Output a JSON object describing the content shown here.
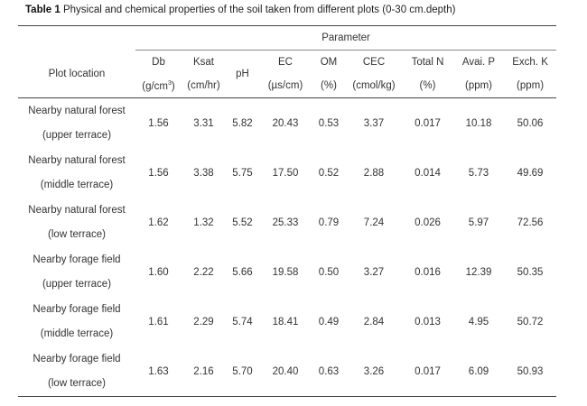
{
  "caption": {
    "label": "Table 1",
    "text": "Physical and chemical properties of the soil taken from different plots (0-30 cm.depth)"
  },
  "table": {
    "group_header": "Parameter",
    "location_header": "Plot location",
    "columns": [
      {
        "name": "Db",
        "unit_pre": "(g/cm",
        "unit_sup": "3",
        "unit_post": ")"
      },
      {
        "name": "Ksat",
        "unit_pre": "(cm/hr)",
        "unit_sup": "",
        "unit_post": ""
      },
      {
        "name": "pH",
        "unit_pre": "",
        "unit_sup": "",
        "unit_post": ""
      },
      {
        "name": "EC",
        "unit_pre": "(µs/cm)",
        "unit_sup": "",
        "unit_post": ""
      },
      {
        "name": "OM",
        "unit_pre": "(%)",
        "unit_sup": "",
        "unit_post": ""
      },
      {
        "name": "CEC",
        "unit_pre": "(cmol/kg)",
        "unit_sup": "",
        "unit_post": ""
      },
      {
        "name": "Total N",
        "unit_pre": "(%)",
        "unit_sup": "",
        "unit_post": ""
      },
      {
        "name": "Avai. P",
        "unit_pre": "(ppm)",
        "unit_sup": "",
        "unit_post": ""
      },
      {
        "name": "Exch. K",
        "unit_pre": "(ppm)",
        "unit_sup": "",
        "unit_post": ""
      }
    ],
    "rows": [
      {
        "loc1": "Nearby natural forest",
        "loc2": "(upper terrace)",
        "values": [
          "1.56",
          "3.31",
          "5.82",
          "20.43",
          "0.53",
          "3.37",
          "0.017",
          "10.18",
          "50.06"
        ]
      },
      {
        "loc1": "Nearby natural forest",
        "loc2": "(middle terrace)",
        "values": [
          "1.56",
          "3.38",
          "5.75",
          "17.50",
          "0.52",
          "2.88",
          "0.014",
          "5.73",
          "49.69"
        ]
      },
      {
        "loc1": "Nearby natural forest",
        "loc2": "(low terrace)",
        "values": [
          "1.62",
          "1.32",
          "5.52",
          "25.33",
          "0.79",
          "7.24",
          "0.026",
          "5.97",
          "72.56"
        ]
      },
      {
        "loc1": "Nearby forage field",
        "loc2": "(upper terrace)",
        "values": [
          "1.60",
          "2.22",
          "5.66",
          "19.58",
          "0.50",
          "3.27",
          "0.016",
          "12.39",
          "50.35"
        ]
      },
      {
        "loc1": "Nearby forage field",
        "loc2": "(middle terrace)",
        "values": [
          "1.61",
          "2.29",
          "5.74",
          "18.41",
          "0.49",
          "2.84",
          "0.013",
          "4.95",
          "50.72"
        ]
      },
      {
        "loc1": "Nearby forage field",
        "loc2": "(low terrace)",
        "values": [
          "1.63",
          "2.16",
          "5.70",
          "20.40",
          "0.63",
          "3.26",
          "0.017",
          "6.09",
          "50.93"
        ]
      }
    ]
  }
}
